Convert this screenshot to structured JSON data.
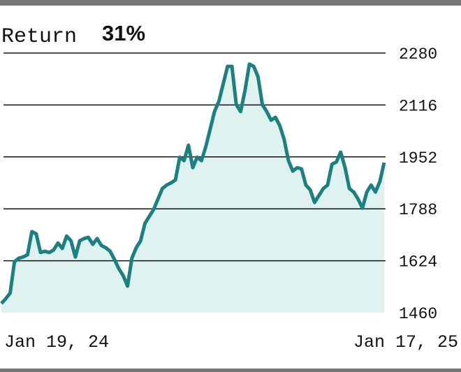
{
  "chart_data": {
    "type": "area",
    "title": "Return",
    "subtitle": "31%",
    "categories": [
      "Jan 19, 24",
      null,
      null,
      null,
      null,
      null,
      null,
      null,
      null,
      null,
      null,
      null,
      null,
      null,
      null,
      null,
      null,
      null,
      null,
      null,
      null,
      null,
      null,
      null,
      null,
      null,
      null,
      null,
      null,
      null,
      null,
      null,
      null,
      null,
      null,
      null,
      null,
      null,
      null,
      null,
      null,
      null,
      null,
      null,
      null,
      null,
      null,
      null,
      null,
      null,
      null,
      null,
      null,
      null,
      null,
      null,
      null,
      null,
      null,
      null,
      null,
      null,
      null,
      null,
      null,
      null,
      null,
      null,
      null,
      null,
      null,
      null,
      null,
      null,
      null,
      null,
      null,
      null,
      null,
      null,
      null,
      null,
      null,
      null,
      null,
      null,
      null,
      null,
      "Jan 17, 25"
    ],
    "values": [
      1489,
      1504,
      1522,
      1621,
      1632,
      1636,
      1643,
      1716,
      1709,
      1650,
      1654,
      1650,
      1658,
      1680,
      1663,
      1702,
      1687,
      1636,
      1687,
      1694,
      1698,
      1676,
      1694,
      1672,
      1665,
      1654,
      1628,
      1599,
      1577,
      1544,
      1632,
      1665,
      1687,
      1742,
      1764,
      1786,
      1819,
      1852,
      1863,
      1870,
      1879,
      1951,
      1940,
      1989,
      1918,
      1951,
      1940,
      1985,
      2040,
      2095,
      2128,
      2183,
      2238,
      2238,
      2117,
      2095,
      2161,
      2245,
      2238,
      2205,
      2117,
      2095,
      2068,
      2077,
      2051,
      2007,
      1940,
      1907,
      1918,
      1914,
      1863,
      1848,
      1808,
      1830,
      1852,
      1863,
      1929,
      1936,
      1967,
      1918,
      1852,
      1841,
      1819,
      1790,
      1841,
      1863,
      1841,
      1874,
      1934
    ],
    "color": "#1a8080",
    "fill_color": "#e0f2f0",
    "ylim": [
      1460,
      2280
    ],
    "yticks": [
      1460,
      1624,
      1788,
      1952,
      2116,
      2280
    ],
    "grid": true
  }
}
